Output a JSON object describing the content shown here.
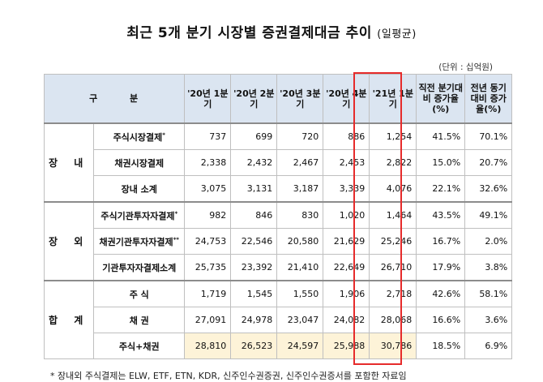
{
  "title": "최근 5개 분기 시장별 증권결제대금 추이",
  "title_sub": "(일평균)",
  "unit": "(단위 : 십억원)",
  "headers": {
    "gubun": "구 분",
    "q1": "'20년 1분기",
    "q2": "'20년 2분기",
    "q3": "'20년 3분기",
    "q4": "'20년 4분기",
    "q5": "'21년 1분기",
    "qoq": "직전 분기대비 증가율(%)",
    "yoy": "전년 동기대비 증가율(%)"
  },
  "groups": {
    "jangnae": "장 내",
    "jangoe": "장 외",
    "total": "합 계"
  },
  "rows": [
    {
      "label": "주식시장결제",
      "mark": "*",
      "values": [
        "737",
        "699",
        "720",
        "886",
        "1,254",
        "41.5%",
        "70.1%"
      ]
    },
    {
      "label": "채권시장결제",
      "mark": "",
      "values": [
        "2,338",
        "2,432",
        "2,467",
        "2,453",
        "2,822",
        "15.0%",
        "20.7%"
      ]
    },
    {
      "label": "장내 소계",
      "mark": "",
      "values": [
        "3,075",
        "3,131",
        "3,187",
        "3,339",
        "4,076",
        "22.1%",
        "32.6%"
      ]
    },
    {
      "label": "주식기관투자자결제",
      "mark": "*",
      "values": [
        "982",
        "846",
        "830",
        "1,020",
        "1,464",
        "43.5%",
        "49.1%"
      ]
    },
    {
      "label": "채권기관투자자결제",
      "mark": "**",
      "values": [
        "24,753",
        "22,546",
        "20,580",
        "21,629",
        "25,246",
        "16.7%",
        "2.0%"
      ]
    },
    {
      "label": "기관투자자결제소계",
      "mark": "",
      "values": [
        "25,735",
        "23,392",
        "21,410",
        "22,649",
        "26,710",
        "17.9%",
        "3.8%"
      ]
    },
    {
      "label": "주 식",
      "mark": "",
      "values": [
        "1,719",
        "1,545",
        "1,550",
        "1,906",
        "2,718",
        "42.6%",
        "58.1%"
      ]
    },
    {
      "label": "채 권",
      "mark": "",
      "values": [
        "27,091",
        "24,978",
        "23,047",
        "24,082",
        "28,068",
        "16.6%",
        "3.6%"
      ]
    },
    {
      "label": "주식+채권",
      "mark": "",
      "values": [
        "28,810",
        "26,523",
        "24,597",
        "25,988",
        "30,786",
        "18.5%",
        "6.9%"
      ]
    }
  ],
  "footnote": "* 장내외 주식결제는 ELW, ETF, ETN, KDR, 신주인수권증권, 신주인수권증서를 포함한 자료임"
}
